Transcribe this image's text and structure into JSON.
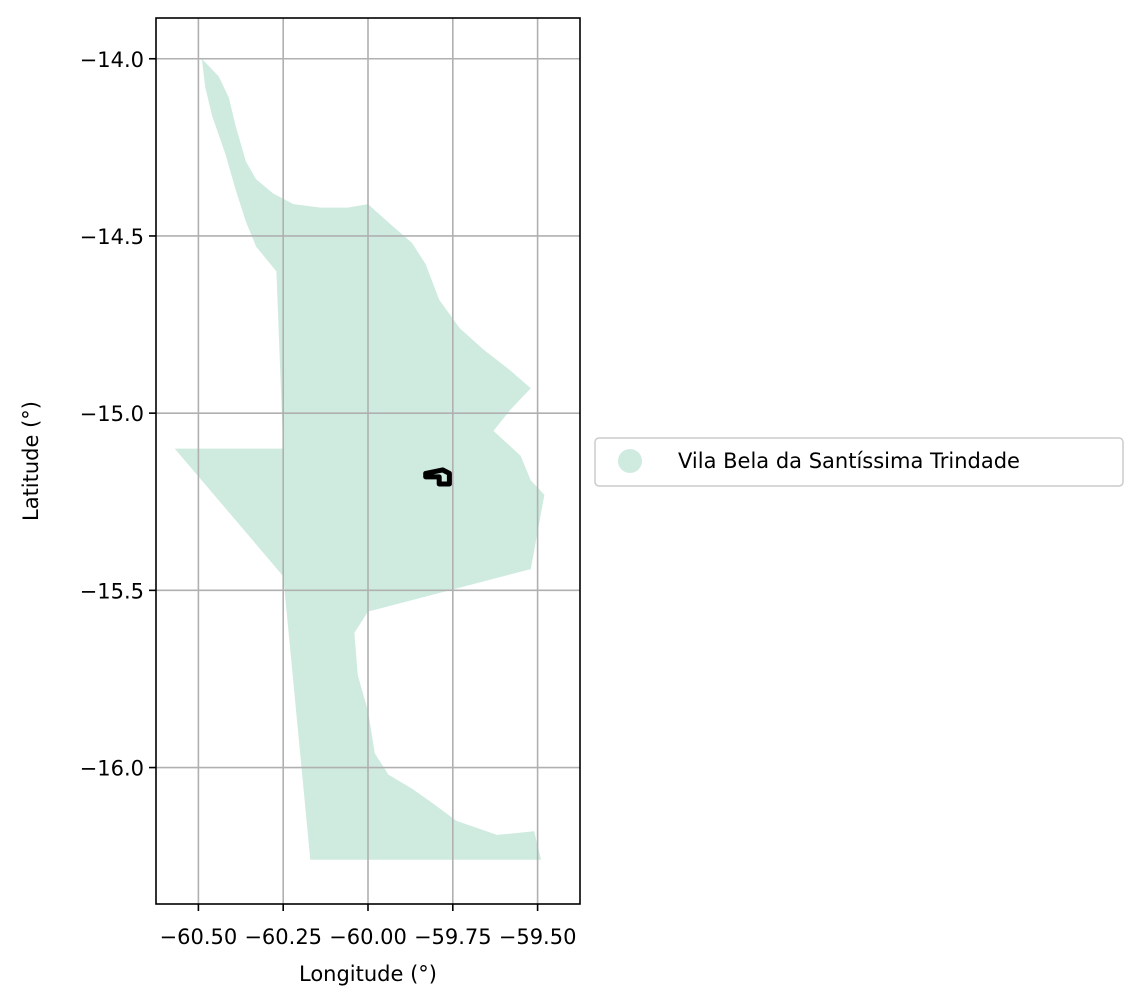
{
  "chart_data": {
    "type": "map",
    "xlabel": "Longitude (°)",
    "ylabel": "Latitude (°)",
    "xlim": [
      -60.625,
      -59.375
    ],
    "ylim": [
      -16.385,
      -13.885
    ],
    "xticks": [
      -60.5,
      -60.25,
      -60.0,
      -59.75,
      -59.5
    ],
    "xtick_labels": [
      "−60.50",
      "−60.25",
      "−60.00",
      "−59.75",
      "−59.50"
    ],
    "yticks": [
      -14.0,
      -14.5,
      -15.0,
      -15.5,
      -16.0
    ],
    "ytick_labels": [
      "−14.0",
      "−14.5",
      "−15.0",
      "−15.5",
      "−16.0"
    ],
    "grid": true,
    "legend": {
      "placement": "center-left outside",
      "entries": [
        {
          "label": "Vila Bela da Santíssima Trindade",
          "color": "#cfebdf"
        }
      ]
    },
    "region_fill": "#cfebdf",
    "region_outline_lonlat": [
      [
        -60.49,
        -14.0
      ],
      [
        -60.47,
        -14.02
      ],
      [
        -60.44,
        -14.05
      ],
      [
        -60.41,
        -14.11
      ],
      [
        -60.39,
        -14.19
      ],
      [
        -60.36,
        -14.29
      ],
      [
        -60.33,
        -14.34
      ],
      [
        -60.28,
        -14.38
      ],
      [
        -60.22,
        -14.41
      ],
      [
        -60.14,
        -14.42
      ],
      [
        -60.06,
        -14.42
      ],
      [
        -60.0,
        -14.41
      ],
      [
        -59.93,
        -14.47
      ],
      [
        -59.87,
        -14.52
      ],
      [
        -59.83,
        -14.58
      ],
      [
        -59.79,
        -14.68
      ],
      [
        -59.73,
        -14.76
      ],
      [
        -59.66,
        -14.82
      ],
      [
        -59.58,
        -14.88
      ],
      [
        -59.52,
        -14.93
      ],
      [
        -59.58,
        -14.99
      ],
      [
        -59.63,
        -15.05
      ],
      [
        -59.55,
        -15.12
      ],
      [
        -59.52,
        -15.19
      ],
      [
        -59.48,
        -15.23
      ],
      [
        -59.52,
        -15.44
      ],
      [
        -60.0,
        -15.56
      ],
      [
        -60.04,
        -15.62
      ],
      [
        -60.03,
        -15.74
      ],
      [
        -60.0,
        -15.84
      ],
      [
        -59.98,
        -15.96
      ],
      [
        -59.94,
        -16.02
      ],
      [
        -59.87,
        -16.06
      ],
      [
        -59.81,
        -16.1
      ],
      [
        -59.74,
        -16.15
      ],
      [
        -59.62,
        -16.19
      ],
      [
        -59.51,
        -16.18
      ],
      [
        -59.49,
        -16.26
      ],
      [
        -60.17,
        -16.26
      ],
      [
        -60.25,
        -15.46
      ],
      [
        -60.57,
        -15.1
      ],
      [
        -60.25,
        -15.1
      ],
      [
        -60.27,
        -14.6
      ],
      [
        -60.33,
        -14.53
      ],
      [
        -60.36,
        -14.46
      ],
      [
        -60.39,
        -14.37
      ],
      [
        -60.42,
        -14.27
      ],
      [
        -60.46,
        -14.16
      ],
      [
        -60.48,
        -14.08
      ]
    ],
    "feature_outline_lonlat": [
      [
        -59.83,
        -15.17
      ],
      [
        -59.78,
        -15.16
      ],
      [
        -59.76,
        -15.17
      ],
      [
        -59.76,
        -15.2
      ],
      [
        -59.79,
        -15.2
      ],
      [
        -59.79,
        -15.18
      ],
      [
        -59.83,
        -15.18
      ]
    ]
  }
}
